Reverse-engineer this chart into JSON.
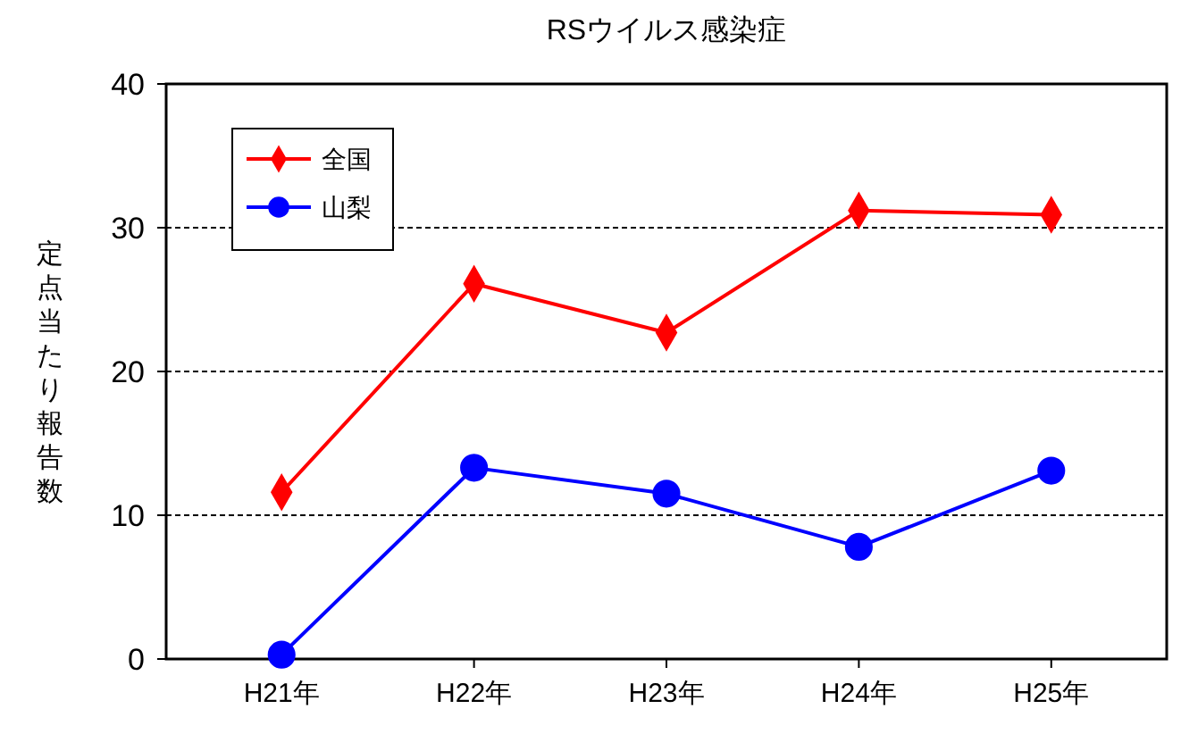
{
  "chart_data": {
    "type": "line",
    "title": "RSウイルス感染症",
    "ylabel": "定点当たり報告数",
    "categories": [
      "H21年",
      "H22年",
      "H23年",
      "H24年",
      "H25年"
    ],
    "series": [
      {
        "name": "全国",
        "color": "#ff0000",
        "marker": "diamond",
        "values": [
          11.6,
          26.1,
          22.7,
          31.2,
          30.9
        ]
      },
      {
        "name": "山梨",
        "color": "#0000ff",
        "marker": "circle",
        "values": [
          0.3,
          13.3,
          11.5,
          7.8,
          13.1
        ]
      }
    ],
    "ylim": [
      0,
      40
    ],
    "yticks": [
      0,
      10,
      20,
      30,
      40
    ],
    "grid": "y",
    "legend": "top left",
    "line_style": "solid"
  }
}
